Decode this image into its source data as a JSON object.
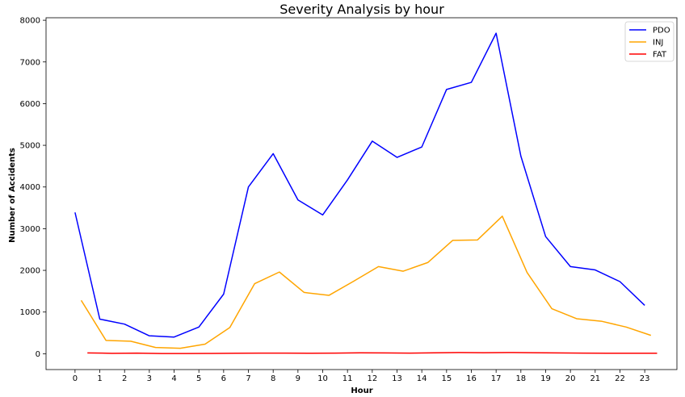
{
  "chart_data": {
    "type": "line",
    "title": "Severity Analysis by hour",
    "xlabel": "Hour",
    "ylabel": "Number of Accidents",
    "xticks": [
      "0",
      "1",
      "2",
      "3",
      "4",
      "5",
      "6",
      "7",
      "8",
      "9",
      "10",
      "11",
      "12",
      "13",
      "14",
      "15",
      "16",
      "17",
      "18",
      "19",
      "20",
      "21",
      "22",
      "23"
    ],
    "yticks": [
      0,
      1000,
      2000,
      3000,
      4000,
      5000,
      6000,
      7000,
      8000
    ],
    "xlim": [
      -1.17,
      24.3
    ],
    "ylim": [
      -380,
      8060
    ],
    "legend_position": "top-right",
    "grid": false,
    "series": [
      {
        "name": "PDO",
        "color": "#0000ff",
        "x": [
          0,
          1,
          2,
          3,
          4,
          5,
          6,
          7,
          8,
          9,
          10,
          11,
          12,
          13,
          14,
          15,
          16,
          17,
          18,
          19,
          20,
          21,
          22,
          23
        ],
        "values": [
          3390,
          830,
          710,
          430,
          400,
          640,
          1430,
          4000,
          4800,
          3690,
          3330,
          4170,
          5100,
          4710,
          4960,
          6340,
          6510,
          7690,
          4740,
          2810,
          2090,
          2010,
          1730,
          1160
        ]
      },
      {
        "name": "INJ",
        "color": "#ffa500",
        "x": [
          0.25,
          1.25,
          2.25,
          3.25,
          4.25,
          5.25,
          6.25,
          7.25,
          8.25,
          9.25,
          10.25,
          11.25,
          12.25,
          13.25,
          14.25,
          15.25,
          16.25,
          17.25,
          18.25,
          19.25,
          20.25,
          21.25,
          22.25,
          23.25
        ],
        "values": [
          1280,
          320,
          300,
          150,
          130,
          230,
          630,
          1680,
          1960,
          1470,
          1400,
          1740,
          2090,
          1980,
          2190,
          2720,
          2730,
          3300,
          1950,
          1080,
          840,
          780,
          640,
          440
        ]
      },
      {
        "name": "FAT",
        "color": "#ff0000",
        "x": [
          0.5,
          1.5,
          2.5,
          3.5,
          4.5,
          5.5,
          6.5,
          7.5,
          8.5,
          9.5,
          10.5,
          11.5,
          12.5,
          13.5,
          14.5,
          15.5,
          16.5,
          17.5,
          18.5,
          19.5,
          20.5,
          21.5,
          22.5,
          23.5
        ],
        "values": [
          20,
          10,
          15,
          5,
          5,
          8,
          12,
          15,
          15,
          12,
          15,
          22,
          20,
          15,
          22,
          28,
          25,
          30,
          25,
          20,
          15,
          12,
          12,
          12
        ]
      }
    ]
  }
}
